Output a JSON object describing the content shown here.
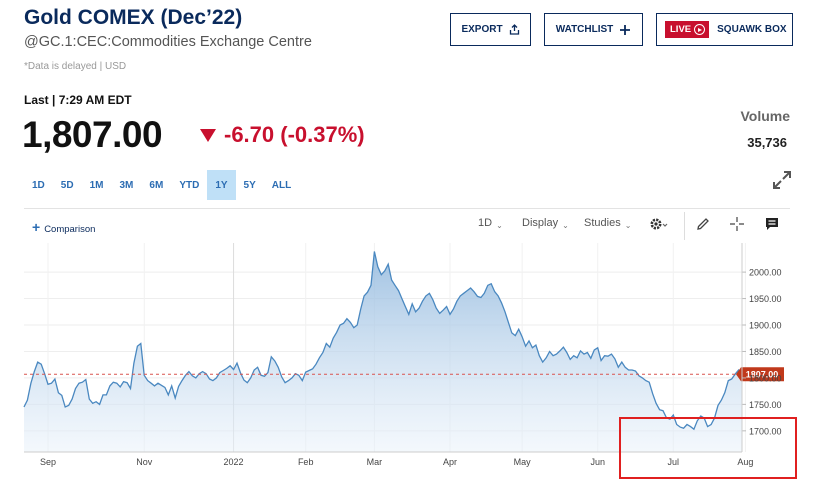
{
  "header": {
    "title": "Gold COMEX (Dec’22)",
    "subtitle": "@GC.1:CEC:Commodities Exchange Centre",
    "delayed_note": "*Data is delayed | USD"
  },
  "actions": {
    "export_label": "EXPORT",
    "watchlist_label": "WATCHLIST",
    "live_label": "LIVE",
    "squawk_label": "SQUAWK BOX"
  },
  "quote": {
    "last_time": "Last | 7:29 AM EDT",
    "price": "1,807.00",
    "change": "-6.70 (-0.37%)",
    "volume_label": "Volume",
    "volume_value": "35,736"
  },
  "ranges": [
    "1D",
    "5D",
    "1M",
    "3M",
    "6M",
    "YTD",
    "1Y",
    "5Y",
    "ALL"
  ],
  "active_range": "1Y",
  "toolbar": {
    "comparison_label": "Comparison",
    "interval_label": "1D",
    "display_label": "Display",
    "studies_label": "Studies"
  },
  "icons": {
    "export": "share-icon",
    "watchlist": "plus-icon",
    "live": "play-circle-icon",
    "expand": "expand-icon",
    "settings": "gear-icon",
    "draw": "pencil-icon",
    "crosshair": "crosshair-icon",
    "comments": "comment-icon"
  },
  "colors": {
    "brand_navy": "#0a2a5c",
    "accent_blue": "#2c6db3",
    "down_red": "#c8102e",
    "range_active_bg": "#bfe0f7",
    "line": "#4a88c0",
    "price_flag": "#c0391b"
  },
  "chart_data": {
    "type": "area",
    "title": "",
    "xlabel": "",
    "ylabel": "",
    "ylim": [
      1660,
      2055
    ],
    "y_ticks": [
      "2000.00",
      "1950.00",
      "1900.00",
      "1850.00",
      "1800.00",
      "1750.00",
      "1700.00"
    ],
    "y_tick_values": [
      2000,
      1950,
      1900,
      1850,
      1800,
      1750,
      1700
    ],
    "x_tick_labels": [
      "Sep",
      "Nov",
      "2022",
      "Feb",
      "Mar",
      "Apr",
      "May",
      "Jun",
      "Jul",
      "Aug"
    ],
    "x_tick_index": [
      7,
      35,
      61,
      82,
      102,
      124,
      145,
      167,
      189,
      210
    ],
    "reference_line": {
      "value": 1807,
      "label": "1807.00"
    },
    "series": [
      {
        "values": [
          1745,
          1758,
          1790,
          1812,
          1830,
          1826,
          1808,
          1788,
          1790,
          1798,
          1772,
          1767,
          1745,
          1748,
          1760,
          1780,
          1790,
          1792,
          1797,
          1760,
          1752,
          1755,
          1750,
          1768,
          1768,
          1785,
          1792,
          1790,
          1783,
          1793,
          1791,
          1780,
          1828,
          1860,
          1865,
          1805,
          1795,
          1790,
          1785,
          1790,
          1786,
          1782,
          1768,
          1785,
          1762,
          1784,
          1795,
          1805,
          1812,
          1804,
          1800,
          1808,
          1812,
          1808,
          1798,
          1795,
          1800,
          1810,
          1814,
          1818,
          1823,
          1816,
          1828,
          1810,
          1796,
          1791,
          1800,
          1815,
          1820,
          1805,
          1803,
          1810,
          1840,
          1832,
          1820,
          1802,
          1791,
          1795,
          1800,
          1808,
          1805,
          1795,
          1811,
          1814,
          1817,
          1826,
          1838,
          1848,
          1865,
          1858,
          1875,
          1886,
          1900,
          1903,
          1912,
          1905,
          1895,
          1900,
          1930,
          1955,
          1962,
          1975,
          2039,
          2010,
          1995,
          2002,
          2015,
          1985,
          1975,
          1965,
          1950,
          1935,
          1920,
          1940,
          1925,
          1932,
          1945,
          1955,
          1960,
          1948,
          1932,
          1922,
          1928,
          1935,
          1920,
          1930,
          1945,
          1955,
          1960,
          1965,
          1970,
          1963,
          1954,
          1952,
          1960,
          1975,
          1978,
          1963,
          1955,
          1942,
          1925,
          1905,
          1885,
          1880,
          1892,
          1878,
          1860,
          1870,
          1857,
          1862,
          1842,
          1830,
          1838,
          1850,
          1842,
          1845,
          1851,
          1858,
          1848,
          1835,
          1842,
          1838,
          1851,
          1845,
          1848,
          1837,
          1853,
          1857,
          1833,
          1842,
          1841,
          1845,
          1836,
          1820,
          1830,
          1820,
          1815,
          1815,
          1813,
          1804,
          1800,
          1795,
          1792,
          1770,
          1752,
          1740,
          1738,
          1725,
          1722,
          1730,
          1712,
          1707,
          1705,
          1712,
          1708,
          1703,
          1719,
          1728,
          1724,
          1708,
          1712,
          1724,
          1748,
          1758,
          1772,
          1795,
          1798,
          1807,
          1815,
          1807
        ]
      }
    ]
  }
}
